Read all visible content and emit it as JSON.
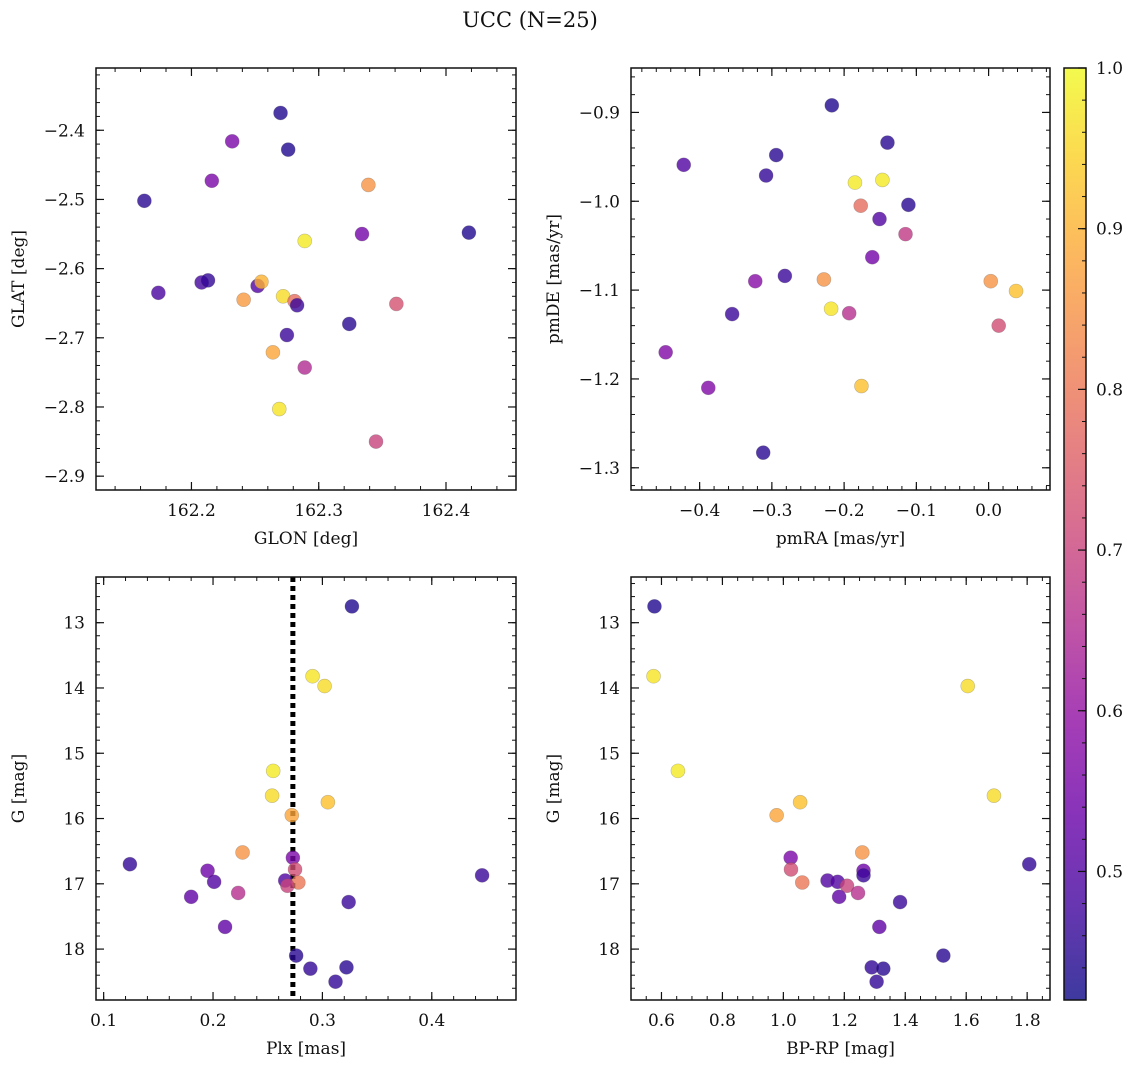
{
  "figure": {
    "title": "UCC (N=25)"
  },
  "colorbar": {
    "range": [
      0.42,
      1.0
    ],
    "ticks": [
      0.5,
      0.6,
      0.7,
      0.8,
      0.9,
      1.0
    ],
    "tick_labels": [
      "0.5",
      "0.6",
      "0.7",
      "0.8",
      "0.9",
      "1.0"
    ],
    "colormap": "plasma",
    "alpha": 0.8
  },
  "chart_data": [
    {
      "type": "scatter",
      "xlabel": "GLON [deg]",
      "ylabel": "GLAT [deg]",
      "xlim": [
        162.125,
        162.455
      ],
      "ylim": [
        -2.92,
        -2.31
      ],
      "xticks": [
        162.2,
        162.3,
        162.4
      ],
      "xtick_labels": [
        "162.2",
        "162.3",
        "162.4"
      ],
      "xminor": 0.02,
      "yticks": [
        -2.9,
        -2.8,
        -2.7,
        -2.6,
        -2.5,
        -2.4
      ],
      "ytick_labels": [
        "−2.9",
        "−2.8",
        "−2.7",
        "−2.6",
        "−2.5",
        "−2.4"
      ],
      "yminor": 0.02,
      "points": [
        {
          "x": 162.27,
          "y": -2.375,
          "c": 0.44
        },
        {
          "x": 162.276,
          "y": -2.428,
          "c": 0.44
        },
        {
          "x": 162.232,
          "y": -2.416,
          "c": 0.56
        },
        {
          "x": 162.216,
          "y": -2.473,
          "c": 0.56
        },
        {
          "x": 162.163,
          "y": -2.502,
          "c": 0.45
        },
        {
          "x": 162.339,
          "y": -2.479,
          "c": 0.85
        },
        {
          "x": 162.418,
          "y": -2.548,
          "c": 0.44
        },
        {
          "x": 162.334,
          "y": -2.55,
          "c": 0.55
        },
        {
          "x": 162.289,
          "y": -2.56,
          "c": 0.98
        },
        {
          "x": 162.208,
          "y": -2.62,
          "c": 0.48
        },
        {
          "x": 162.213,
          "y": -2.617,
          "c": 0.46
        },
        {
          "x": 162.174,
          "y": -2.635,
          "c": 0.49
        },
        {
          "x": 162.252,
          "y": -2.625,
          "c": 0.5
        },
        {
          "x": 162.255,
          "y": -2.619,
          "c": 0.9
        },
        {
          "x": 162.241,
          "y": -2.645,
          "c": 0.86
        },
        {
          "x": 162.272,
          "y": -2.64,
          "c": 0.96
        },
        {
          "x": 162.281,
          "y": -2.647,
          "c": 0.78
        },
        {
          "x": 162.283,
          "y": -2.653,
          "c": 0.47
        },
        {
          "x": 162.361,
          "y": -2.651,
          "c": 0.73
        },
        {
          "x": 162.324,
          "y": -2.68,
          "c": 0.45
        },
        {
          "x": 162.275,
          "y": -2.696,
          "c": 0.47
        },
        {
          "x": 162.264,
          "y": -2.721,
          "c": 0.88
        },
        {
          "x": 162.289,
          "y": -2.743,
          "c": 0.65
        },
        {
          "x": 162.269,
          "y": -2.803,
          "c": 0.97
        },
        {
          "x": 162.345,
          "y": -2.85,
          "c": 0.7
        }
      ]
    },
    {
      "type": "scatter",
      "xlabel": "pmRA [mas/yr]",
      "ylabel": "pmDE [mas/yr]",
      "xlim": [
        -0.495,
        0.085
      ],
      "ylim": [
        -1.325,
        -0.85
      ],
      "xticks": [
        -0.4,
        -0.3,
        -0.2,
        -0.1,
        0.0
      ],
      "xtick_labels": [
        "−0.4",
        "−0.3",
        "−0.2",
        "−0.1",
        "0.0"
      ],
      "xminor": 0.02,
      "yticks": [
        -1.3,
        -1.2,
        -1.1,
        -1.0,
        -0.9
      ],
      "ytick_labels": [
        "−1.3",
        "−1.2",
        "−1.1",
        "−1.0",
        "−0.9"
      ],
      "yminor": 0.02,
      "points": [
        {
          "x": -0.217,
          "y": -0.892,
          "c": 0.44
        },
        {
          "x": -0.14,
          "y": -0.934,
          "c": 0.45
        },
        {
          "x": -0.294,
          "y": -0.948,
          "c": 0.45
        },
        {
          "x": -0.422,
          "y": -0.959,
          "c": 0.5
        },
        {
          "x": -0.308,
          "y": -0.971,
          "c": 0.46
        },
        {
          "x": -0.185,
          "y": -0.979,
          "c": 0.98
        },
        {
          "x": -0.147,
          "y": -0.976,
          "c": 0.98
        },
        {
          "x": -0.177,
          "y": -1.005,
          "c": 0.78
        },
        {
          "x": -0.111,
          "y": -1.004,
          "c": 0.45
        },
        {
          "x": -0.151,
          "y": -1.02,
          "c": 0.5
        },
        {
          "x": -0.115,
          "y": -1.037,
          "c": 0.68
        },
        {
          "x": -0.161,
          "y": -1.063,
          "c": 0.55
        },
        {
          "x": -0.282,
          "y": -1.084,
          "c": 0.47
        },
        {
          "x": -0.228,
          "y": -1.088,
          "c": 0.85
        },
        {
          "x": -0.323,
          "y": -1.09,
          "c": 0.58
        },
        {
          "x": 0.003,
          "y": -1.09,
          "c": 0.85
        },
        {
          "x": 0.038,
          "y": -1.101,
          "c": 0.92
        },
        {
          "x": -0.218,
          "y": -1.121,
          "c": 0.97
        },
        {
          "x": -0.193,
          "y": -1.126,
          "c": 0.66
        },
        {
          "x": -0.355,
          "y": -1.127,
          "c": 0.47
        },
        {
          "x": 0.014,
          "y": -1.14,
          "c": 0.72
        },
        {
          "x": -0.447,
          "y": -1.17,
          "c": 0.57
        },
        {
          "x": -0.388,
          "y": -1.21,
          "c": 0.57
        },
        {
          "x": -0.176,
          "y": -1.208,
          "c": 0.92
        },
        {
          "x": -0.312,
          "y": -1.283,
          "c": 0.45
        }
      ]
    },
    {
      "type": "scatter",
      "xlabel": "Plx [mas]",
      "ylabel": "G [mag]",
      "xlim": [
        0.093,
        0.477
      ],
      "ylim": [
        18.78,
        12.3
      ],
      "xticks": [
        0.1,
        0.2,
        0.3,
        0.4
      ],
      "xtick_labels": [
        "0.1",
        "0.2",
        "0.3",
        "0.4"
      ],
      "xminor": 0.02,
      "yticks": [
        13,
        14,
        15,
        16,
        17,
        18
      ],
      "ytick_labels": [
        "13",
        "14",
        "15",
        "16",
        "17",
        "18"
      ],
      "yminor": 0.2,
      "vline": 0.273,
      "points": [
        {
          "x": 0.327,
          "y": 12.75,
          "c": 0.44
        },
        {
          "x": 0.291,
          "y": 13.82,
          "c": 0.97
        },
        {
          "x": 0.302,
          "y": 13.97,
          "c": 0.96
        },
        {
          "x": 0.255,
          "y": 15.27,
          "c": 0.98
        },
        {
          "x": 0.254,
          "y": 15.65,
          "c": 0.96
        },
        {
          "x": 0.305,
          "y": 15.75,
          "c": 0.92
        },
        {
          "x": 0.272,
          "y": 15.95,
          "c": 0.88
        },
        {
          "x": 0.227,
          "y": 16.52,
          "c": 0.85
        },
        {
          "x": 0.273,
          "y": 16.6,
          "c": 0.56
        },
        {
          "x": 0.124,
          "y": 16.7,
          "c": 0.46
        },
        {
          "x": 0.275,
          "y": 16.78,
          "c": 0.72
        },
        {
          "x": 0.195,
          "y": 16.8,
          "c": 0.54
        },
        {
          "x": 0.446,
          "y": 16.87,
          "c": 0.47
        },
        {
          "x": 0.266,
          "y": 16.95,
          "c": 0.5
        },
        {
          "x": 0.201,
          "y": 16.97,
          "c": 0.5
        },
        {
          "x": 0.278,
          "y": 16.98,
          "c": 0.8
        },
        {
          "x": 0.268,
          "y": 17.03,
          "c": 0.7
        },
        {
          "x": 0.223,
          "y": 17.14,
          "c": 0.66
        },
        {
          "x": 0.18,
          "y": 17.2,
          "c": 0.52
        },
        {
          "x": 0.324,
          "y": 17.28,
          "c": 0.47
        },
        {
          "x": 0.211,
          "y": 17.66,
          "c": 0.52
        },
        {
          "x": 0.276,
          "y": 18.1,
          "c": 0.45
        },
        {
          "x": 0.289,
          "y": 18.3,
          "c": 0.46
        },
        {
          "x": 0.322,
          "y": 18.28,
          "c": 0.45
        },
        {
          "x": 0.312,
          "y": 18.5,
          "c": 0.46
        }
      ]
    },
    {
      "type": "scatter",
      "xlabel": "BP-RP [mag]",
      "ylabel": "G [mag]",
      "xlim": [
        0.5,
        1.875
      ],
      "ylim": [
        18.78,
        12.3
      ],
      "xticks": [
        0.6,
        0.8,
        1.0,
        1.2,
        1.4,
        1.6,
        1.8
      ],
      "xtick_labels": [
        "0.6",
        "0.8",
        "1.0",
        "1.2",
        "1.4",
        "1.6",
        "1.8"
      ],
      "xminor": 0.05,
      "yticks": [
        13,
        14,
        15,
        16,
        17,
        18
      ],
      "ytick_labels": [
        "13",
        "14",
        "15",
        "16",
        "17",
        "18"
      ],
      "yminor": 0.2,
      "points": [
        {
          "x": 0.577,
          "y": 12.75,
          "c": 0.44
        },
        {
          "x": 0.574,
          "y": 13.82,
          "c": 0.97
        },
        {
          "x": 1.605,
          "y": 13.97,
          "c": 0.96
        },
        {
          "x": 0.654,
          "y": 15.27,
          "c": 0.98
        },
        {
          "x": 1.691,
          "y": 15.65,
          "c": 0.96
        },
        {
          "x": 1.055,
          "y": 15.75,
          "c": 0.92
        },
        {
          "x": 0.978,
          "y": 15.95,
          "c": 0.88
        },
        {
          "x": 1.259,
          "y": 16.52,
          "c": 0.85
        },
        {
          "x": 1.024,
          "y": 16.6,
          "c": 0.56
        },
        {
          "x": 1.807,
          "y": 16.7,
          "c": 0.46
        },
        {
          "x": 1.025,
          "y": 16.78,
          "c": 0.72
        },
        {
          "x": 1.263,
          "y": 16.8,
          "c": 0.54
        },
        {
          "x": 1.263,
          "y": 16.87,
          "c": 0.47
        },
        {
          "x": 1.145,
          "y": 16.95,
          "c": 0.5
        },
        {
          "x": 1.178,
          "y": 16.97,
          "c": 0.5
        },
        {
          "x": 1.062,
          "y": 16.98,
          "c": 0.8
        },
        {
          "x": 1.209,
          "y": 17.03,
          "c": 0.7
        },
        {
          "x": 1.245,
          "y": 17.14,
          "c": 0.66
        },
        {
          "x": 1.183,
          "y": 17.2,
          "c": 0.52
        },
        {
          "x": 1.383,
          "y": 17.28,
          "c": 0.47
        },
        {
          "x": 1.315,
          "y": 17.66,
          "c": 0.52
        },
        {
          "x": 1.525,
          "y": 18.1,
          "c": 0.45
        },
        {
          "x": 1.29,
          "y": 18.28,
          "c": 0.46
        },
        {
          "x": 1.328,
          "y": 18.3,
          "c": 0.45
        },
        {
          "x": 1.306,
          "y": 18.5,
          "c": 0.46
        }
      ]
    }
  ]
}
